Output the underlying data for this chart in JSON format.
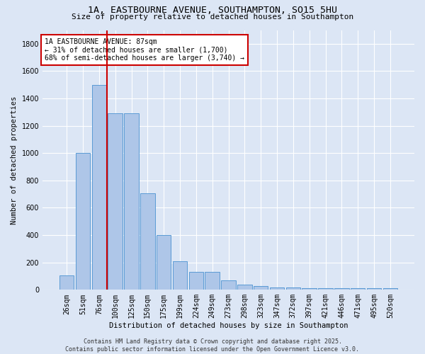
{
  "title": "1A, EASTBOURNE AVENUE, SOUTHAMPTON, SO15 5HU",
  "subtitle": "Size of property relative to detached houses in Southampton",
  "xlabel": "Distribution of detached houses by size in Southampton",
  "ylabel": "Number of detached properties",
  "categories": [
    "26sqm",
    "51sqm",
    "76sqm",
    "100sqm",
    "125sqm",
    "150sqm",
    "175sqm",
    "199sqm",
    "224sqm",
    "249sqm",
    "273sqm",
    "298sqm",
    "323sqm",
    "347sqm",
    "372sqm",
    "397sqm",
    "421sqm",
    "446sqm",
    "471sqm",
    "495sqm",
    "520sqm"
  ],
  "values": [
    105,
    1000,
    1500,
    1290,
    1290,
    705,
    400,
    210,
    130,
    130,
    70,
    40,
    30,
    15,
    15,
    10,
    10,
    10,
    10,
    10,
    10
  ],
  "bar_color": "#aec6e8",
  "bar_edge_color": "#5a9bd5",
  "plot_bg_color": "#dce6f5",
  "fig_bg_color": "#dce6f5",
  "grid_color": "#ffffff",
  "vline_x": 2.5,
  "vline_color": "#cc0000",
  "annotation_text": "1A EASTBOURNE AVENUE: 87sqm\n← 31% of detached houses are smaller (1,700)\n68% of semi-detached houses are larger (3,740) →",
  "annotation_box_facecolor": "#ffffff",
  "annotation_box_edgecolor": "#cc0000",
  "footer": "Contains HM Land Registry data © Crown copyright and database right 2025.\nContains public sector information licensed under the Open Government Licence v3.0.",
  "ylim": [
    0,
    1900
  ],
  "yticks": [
    0,
    200,
    400,
    600,
    800,
    1000,
    1200,
    1400,
    1600,
    1800
  ],
  "title_fontsize": 9.5,
  "subtitle_fontsize": 8,
  "tick_fontsize": 7,
  "ylabel_fontsize": 7.5,
  "xlabel_fontsize": 7.5,
  "footer_fontsize": 6,
  "annot_fontsize": 7
}
